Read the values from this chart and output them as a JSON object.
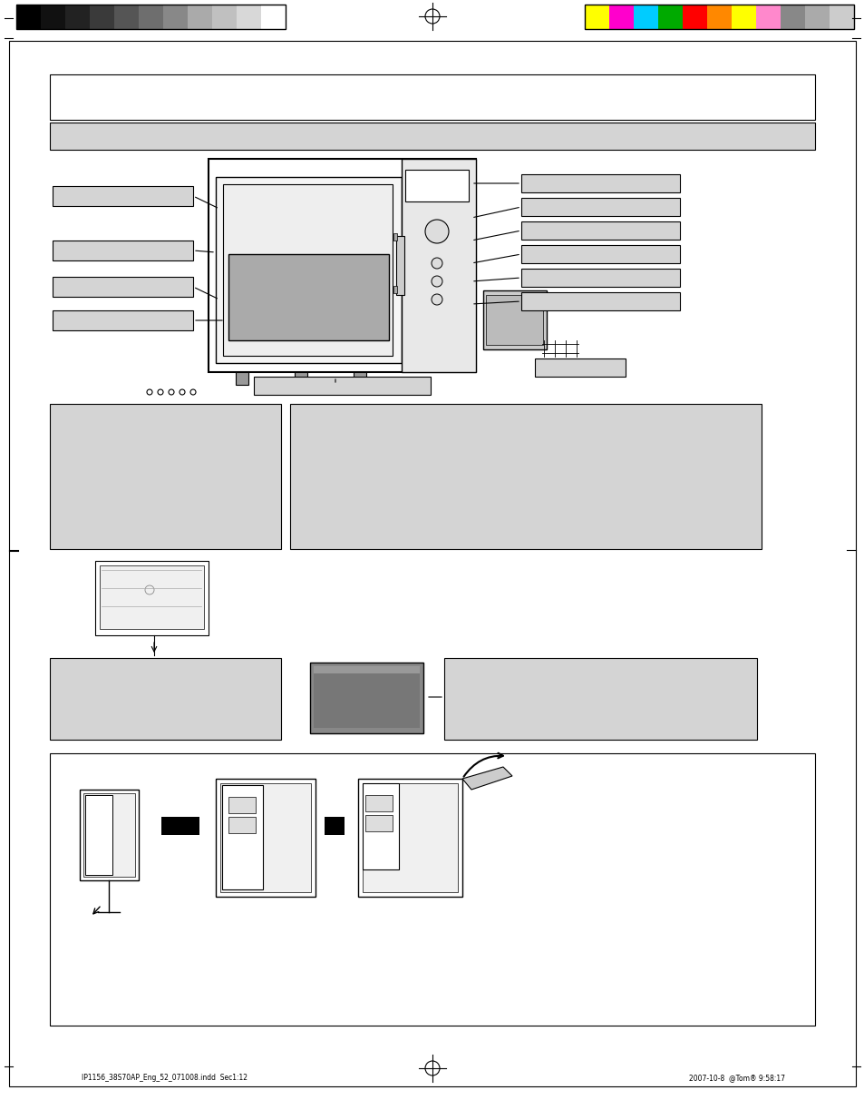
{
  "page_bg": "#ffffff",
  "border_color": "#000000",
  "light_gray": "#d0d0d0",
  "medium_gray": "#b0b0b0",
  "dark_gray": "#808080",
  "label_bg": "#d4d4d4",
  "box_bg": "#d4d4d4",
  "text_color": "#000000",
  "footer_text_left": "IP1156_38S70AP_Eng_52_071008.indd  Sec1:12",
  "footer_text_right": "2007-10-8  @Tom® 9:58:17",
  "colors_left": [
    "#000000",
    "#111111",
    "#222222",
    "#3a3a3a",
    "#555555",
    "#6e6e6e",
    "#888888",
    "#aaaaaa",
    "#c0c0c0",
    "#d8d8d8",
    "#ffffff"
  ],
  "colors_right": [
    "#ffff00",
    "#ff00cc",
    "#00ccff",
    "#00aa00",
    "#ff0000",
    "#ff8800",
    "#ffff00",
    "#ff88cc",
    "#888888",
    "#aaaaaa",
    "#cccccc"
  ]
}
